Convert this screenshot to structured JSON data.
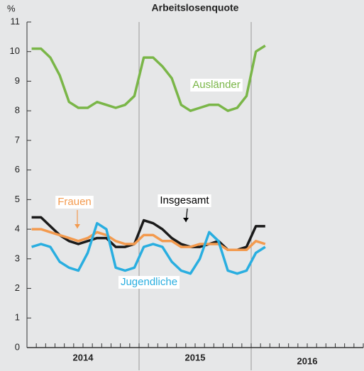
{
  "chart_data": {
    "type": "line",
    "title": "Arbeitslosenquote",
    "ylabel": "%",
    "categories": [
      null,
      null,
      null,
      null,
      null,
      null,
      null,
      null,
      null,
      null,
      null,
      null,
      null,
      null,
      null,
      null,
      null,
      null,
      null,
      null,
      null,
      null,
      null,
      null,
      null,
      null,
      null,
      null,
      null,
      null,
      null,
      null,
      null,
      null,
      null,
      null
    ],
    "x_groups": [
      "2014",
      "2015",
      "2016"
    ],
    "ylim": [
      0,
      11
    ],
    "yticks": [
      0,
      1,
      2,
      3,
      4,
      5,
      6,
      7,
      8,
      9,
      10,
      11
    ],
    "series": [
      {
        "name": "Ausländer",
        "color": "#7ab648",
        "values": [
          10.1,
          10.1,
          9.8,
          9.2,
          8.3,
          8.1,
          8.1,
          8.3,
          8.2,
          8.1,
          8.2,
          8.5,
          9.8,
          9.8,
          9.5,
          9.1,
          8.2,
          8.0,
          8.1,
          8.2,
          8.2,
          8.0,
          8.1,
          8.5,
          10.0,
          10.2,
          null,
          null,
          null,
          null,
          null,
          null,
          null,
          null,
          null,
          null
        ]
      },
      {
        "name": "Insgesamt",
        "color": "#1a1a1a",
        "values": [
          4.4,
          4.4,
          4.1,
          3.8,
          3.6,
          3.5,
          3.6,
          3.7,
          3.7,
          3.4,
          3.4,
          3.5,
          4.3,
          4.2,
          4.0,
          3.7,
          3.5,
          3.4,
          3.4,
          3.5,
          3.6,
          3.3,
          3.3,
          3.4,
          4.1,
          4.1,
          null,
          null,
          null,
          null,
          null,
          null,
          null,
          null,
          null,
          null
        ]
      },
      {
        "name": "Frauen",
        "color": "#f39a4e",
        "values": [
          4.0,
          4.0,
          3.9,
          3.8,
          3.7,
          3.6,
          3.7,
          3.9,
          3.8,
          3.6,
          3.5,
          3.5,
          3.8,
          3.8,
          3.6,
          3.6,
          3.4,
          3.4,
          3.5,
          3.5,
          3.5,
          3.3,
          3.3,
          3.3,
          3.6,
          3.5,
          null,
          null,
          null,
          null,
          null,
          null,
          null,
          null,
          null,
          null
        ]
      },
      {
        "name": "Jugendliche",
        "color": "#29aee0",
        "values": [
          3.4,
          3.5,
          3.4,
          2.9,
          2.7,
          2.6,
          3.2,
          4.2,
          4.0,
          2.7,
          2.6,
          2.7,
          3.4,
          3.5,
          3.4,
          2.9,
          2.6,
          2.5,
          3.0,
          3.9,
          3.6,
          2.6,
          2.5,
          2.6,
          3.2,
          3.4,
          null,
          null,
          null,
          null,
          null,
          null,
          null,
          null,
          null,
          null
        ]
      }
    ]
  }
}
